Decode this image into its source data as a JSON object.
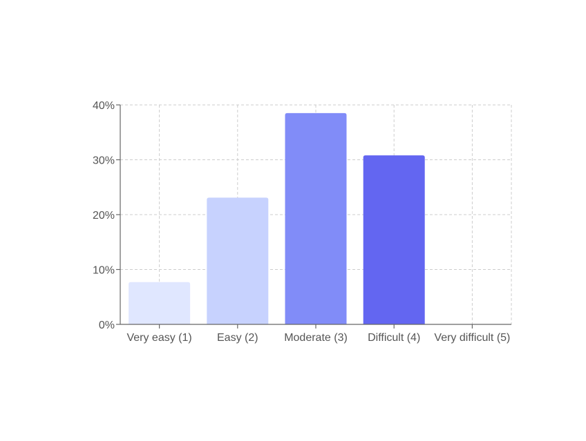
{
  "chart_data": {
    "type": "bar",
    "title": "",
    "xlabel": "",
    "ylabel": "",
    "categories": [
      "Very easy (1)",
      "Easy (2)",
      "Moderate (3)",
      "Difficult (4)",
      "Very difficult (5)"
    ],
    "values": [
      7.7,
      23.1,
      38.5,
      30.8,
      0
    ],
    "value_unit": "%",
    "ylim": [
      0,
      40
    ],
    "yticks": [
      0,
      10,
      20,
      30,
      40
    ],
    "ytick_labels": [
      "0%",
      "10%",
      "20%",
      "30%",
      "40%"
    ],
    "colors": [
      "#e0e7ff",
      "#c7d2fe",
      "#818cf8",
      "#6366f1",
      "#4f46e5"
    ],
    "grid": true,
    "legend": "none"
  }
}
